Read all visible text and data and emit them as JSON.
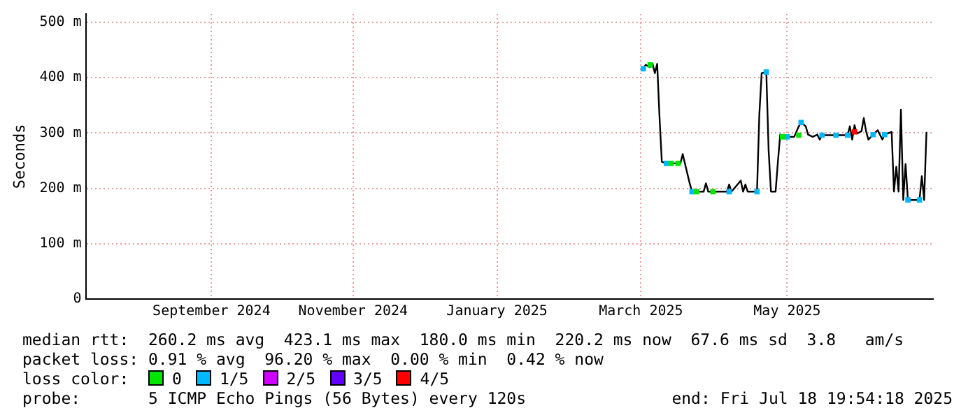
{
  "chart_data": {
    "type": "line",
    "ylabel": "Seconds",
    "xlim": [
      "2024-07-18T19:54",
      "2025-07-18T19:54"
    ],
    "xticks": [
      {
        "value": "2024-09-11",
        "label": "September 2024"
      },
      {
        "value": "2024-11-11",
        "label": "November 2024"
      },
      {
        "value": "2025-01-12",
        "label": "January 2025"
      },
      {
        "value": "2025-03-15",
        "label": "March 2025"
      },
      {
        "value": "2025-05-17",
        "label": "May 2025"
      }
    ],
    "ylim": [
      0,
      515
    ],
    "yticks": [
      0,
      {
        "value": 100,
        "label": "100 m"
      },
      {
        "value": 200,
        "label": "200 m"
      },
      {
        "value": 300,
        "label": "300 m"
      },
      {
        "value": 400,
        "label": "400 m"
      },
      {
        "value": 500,
        "label": "500 m"
      }
    ],
    "grid": true,
    "legend": "bottom",
    "marker": "square",
    "line_style": "solid",
    "series": [
      {
        "type": "line",
        "marker": "none",
        "color": "#000000",
        "x": [
          "2025-03-16",
          "2025-03-17",
          "2025-03-19",
          "2025-03-20",
          "2025-03-21",
          "2025-03-22",
          "2025-03-23",
          "2025-03-24",
          "2025-03-26",
          "2025-04-01",
          "2025-04-02",
          "2025-04-03",
          "2025-04-05",
          "2025-04-06",
          "2025-04-11",
          "2025-04-12",
          "2025-04-13",
          "2025-04-21",
          "2025-04-22",
          "2025-04-23",
          "2025-04-26",
          "2025-04-27",
          "2025-04-28",
          "2025-04-29",
          "2025-04-30",
          "2025-05-04",
          "2025-05-05",
          "2025-05-06",
          "2025-05-08",
          "2025-05-09",
          "2025-05-10",
          "2025-05-12",
          "2025-05-13",
          "2025-05-14",
          "2025-05-17",
          "2025-05-20",
          "2025-05-22",
          "2025-05-23",
          "2025-05-25",
          "2025-05-26",
          "2025-05-28",
          "2025-05-30",
          "2025-05-31",
          "2025-06-01",
          "2025-06-07",
          "2025-06-12",
          "2025-06-13",
          "2025-06-14",
          "2025-06-15",
          "2025-06-16",
          "2025-06-18",
          "2025-06-19",
          "2025-06-20",
          "2025-06-21",
          "2025-06-23",
          "2025-06-25",
          "2025-06-27",
          "2025-06-28",
          "2025-07-01",
          "2025-07-02",
          "2025-07-03",
          "2025-07-04",
          "2025-07-05",
          "2025-07-06",
          "2025-07-07",
          "2025-07-08",
          "2025-07-13",
          "2025-07-14",
          "2025-07-15",
          "2025-07-16"
        ],
        "values": [
          416,
          423,
          419,
          425,
          408,
          425,
          329,
          248,
          245,
          245,
          262,
          244,
          209,
          194,
          194,
          209,
          194,
          194,
          207,
          194,
          209,
          214,
          194,
          207,
          194,
          194,
          333,
          408,
          410,
          269,
          194,
          194,
          248,
          297,
          293,
          293,
          312,
          319,
          312,
          297,
          293,
          297,
          288,
          296,
          296,
          296,
          312,
          288,
          314,
          299,
          303,
          327,
          303,
          288,
          297,
          305,
          288,
          297,
          302,
          194,
          239,
          194,
          342,
          179,
          244,
          179,
          179,
          222,
          179,
          302
        ]
      },
      {
        "type": "scatter",
        "name": "0",
        "color": "#00e600",
        "x": [
          "2025-03-19",
          "2025-03-28",
          "2025-03-31",
          "2025-04-08",
          "2025-04-15",
          "2025-05-15",
          "2025-05-22"
        ],
        "values": [
          423,
          245,
          245,
          194,
          194,
          293,
          296
        ]
      },
      {
        "type": "scatter",
        "name": "1/5",
        "color": "#00b8ff",
        "x": [
          "2025-03-16",
          "2025-03-26",
          "2025-04-06",
          "2025-04-22",
          "2025-05-04",
          "2025-05-08",
          "2025-05-17",
          "2025-05-23",
          "2025-06-01",
          "2025-06-07",
          "2025-06-12",
          "2025-06-23",
          "2025-06-28",
          "2025-07-08",
          "2025-07-13"
        ],
        "values": [
          416,
          245,
          194,
          194,
          194,
          410,
          293,
          319,
          296,
          296,
          296,
          297,
          297,
          179,
          179
        ]
      },
      {
        "type": "scatter",
        "name": "2/5",
        "color": "#d000ff"
      },
      {
        "type": "scatter",
        "name": "3/5",
        "color": "#6200ff"
      },
      {
        "type": "scatter",
        "name": "4/5",
        "color": "#ff0000",
        "x": [
          "2025-06-15"
        ],
        "values": [
          302
        ]
      }
    ],
    "annotations": [
      "median rtt:  260.2 ms avg  423.1 ms max  180.0 ms min  220.2 ms now  67.6 ms sd  3.8   am/s",
      "packet loss: 0.91 % avg  96.20 % max  0.00 % min  0.42 % now",
      "loss color:",
      "probe:       5 ICMP Echo Pings (56 Bytes) every 120s",
      "end: Fri Jul 18 19:54:18 2025"
    ]
  }
}
